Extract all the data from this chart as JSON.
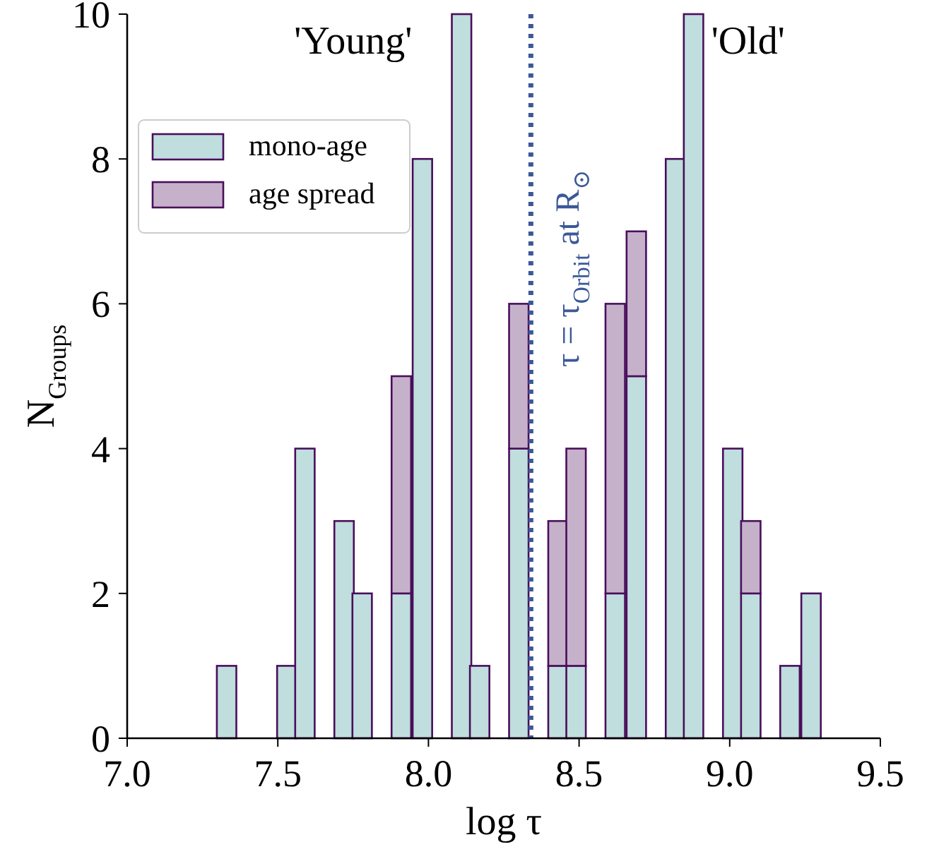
{
  "chart_data": {
    "type": "bar",
    "xlabel": "log τ",
    "ylabel": "N$_{Groups}$",
    "x": [
      7.33,
      7.4,
      7.46,
      7.53,
      7.59,
      7.66,
      7.72,
      7.78,
      7.85,
      7.91,
      7.98,
      8.04,
      8.11,
      8.17,
      8.24,
      8.3,
      8.37,
      8.43,
      8.49,
      8.56,
      8.62,
      8.69,
      8.75,
      8.82,
      8.88,
      8.95,
      9.01,
      9.07,
      9.14,
      9.2,
      9.27
    ],
    "stacked": true,
    "series": [
      {
        "name": "mono-age",
        "color": "#bfdedd",
        "values": [
          1,
          0,
          0,
          1,
          4,
          0,
          3,
          2,
          0,
          2,
          8,
          0,
          10,
          1,
          0,
          4,
          0,
          1,
          1,
          0,
          2,
          5,
          0,
          8,
          10,
          0,
          4,
          2,
          0,
          1,
          2
        ]
      },
      {
        "name": "age spread",
        "color": "#c6b1cb",
        "values": [
          0,
          0,
          0,
          0,
          0,
          0,
          0,
          0,
          0,
          3,
          0,
          0,
          0,
          0,
          0,
          2,
          0,
          2,
          3,
          0,
          4,
          2,
          0,
          0,
          0,
          0,
          0,
          1,
          0,
          0,
          0
        ]
      }
    ],
    "xlim": [
      7.0,
      9.5
    ],
    "ylim": [
      0,
      10
    ],
    "xticks": [
      {
        "value": 7.0,
        "label": "7.0"
      },
      7.5,
      {
        "value": 8.0,
        "label": "8.0"
      },
      8.5,
      {
        "value": 9.0,
        "label": "9.0"
      },
      9.5
    ],
    "yticks": [
      0,
      2,
      4,
      6,
      8,
      10
    ],
    "ref_lines": [
      {
        "axis": "x",
        "value": 8.34,
        "label": "τ = τ$_{Orbit}$ at R$_{⊙}$",
        "color": "#3b5998",
        "line_style": "dotted"
      }
    ],
    "annotations": [
      "'Young'",
      "'Old'"
    ],
    "legend": "top left",
    "grid": false
  }
}
